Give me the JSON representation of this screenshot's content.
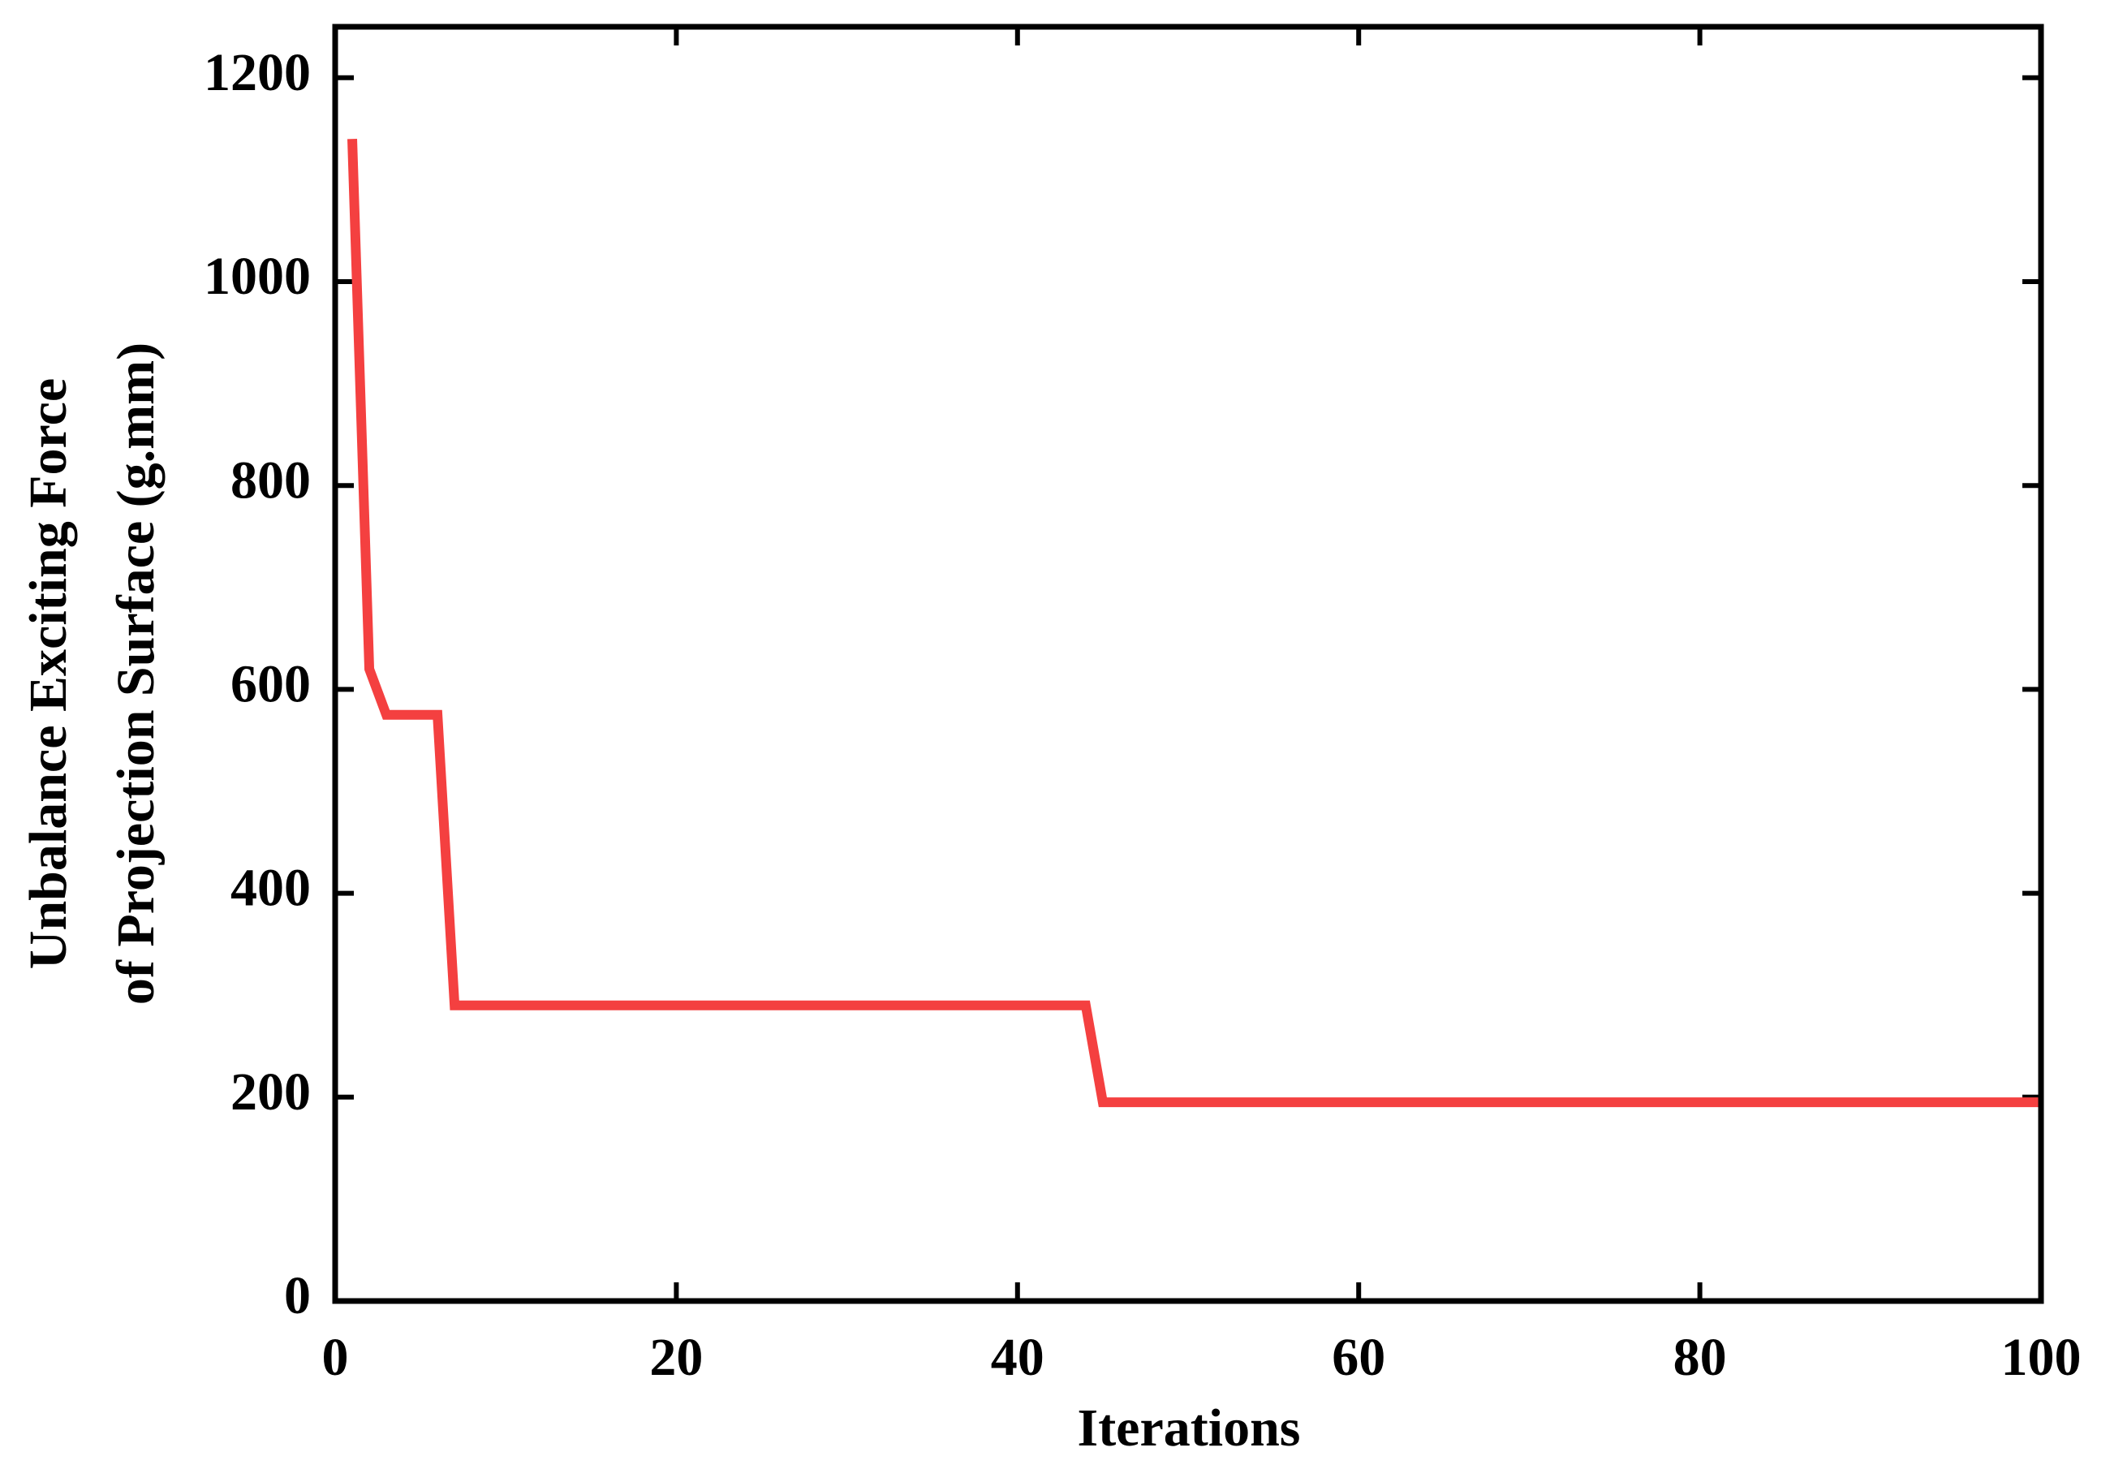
{
  "chart_data": {
    "type": "line",
    "xlabel": "Iterations",
    "ylabel": [
      "Unbalance Exciting Force",
      "of Projection Surface (g.mm)"
    ],
    "x": [
      1,
      2,
      3,
      6,
      7,
      44,
      45,
      100
    ],
    "series": [
      {
        "color": "#f44040",
        "values": [
          1140,
          620,
          575,
          575,
          290,
          290,
          195,
          195
        ]
      }
    ],
    "xlim": [
      0,
      100
    ],
    "xticks": [
      0,
      20,
      40,
      60,
      80,
      100
    ],
    "ylim": [
      0,
      1250
    ],
    "yticks": [
      0,
      200,
      400,
      600,
      800,
      1000,
      1200
    ],
    "grid": false
  }
}
